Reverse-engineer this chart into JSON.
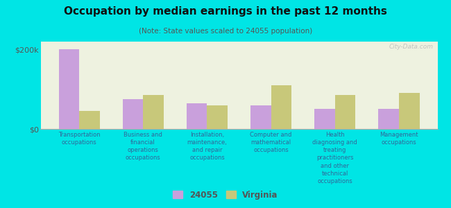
{
  "title": "Occupation by median earnings in the past 12 months",
  "subtitle": "(Note: State values scaled to 24055 population)",
  "background_color": "#00e5e5",
  "plot_bg_color": "#eef2e0",
  "categories": [
    "Transportation\noccupations",
    "Business and\nfinancial\noperations\noccupations",
    "Installation,\nmaintenance,\nand repair\noccupations",
    "Computer and\nmathematical\noccupations",
    "Health\ndiagnosing and\ntreating\npractitioners\nand other\ntechnical\noccupations",
    "Management\noccupations"
  ],
  "values_24055": [
    200000,
    75000,
    65000,
    60000,
    50000,
    50000
  ],
  "values_virginia": [
    45000,
    85000,
    60000,
    110000,
    85000,
    90000
  ],
  "color_24055": "#c9a0dc",
  "color_virginia": "#c8c87a",
  "ylim": [
    0,
    220000
  ],
  "yticks": [
    0,
    200000
  ],
  "ytick_labels": [
    "$0",
    "$200k"
  ],
  "legend_label_24055": "24055",
  "legend_label_virginia": "Virginia",
  "watermark": "City-Data.com"
}
